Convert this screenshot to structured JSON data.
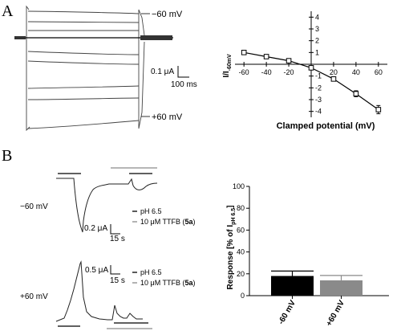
{
  "panels": {
    "A": {
      "letter": "A",
      "trace_labels": {
        "top": "−60 mV",
        "bottom": "+60 mV"
      },
      "scale_bar": {
        "current": "0.1 μA",
        "time": "100 ms"
      }
    },
    "B": {
      "letter": "B",
      "row_labels": {
        "top": "−60 mV",
        "bottom": "+60 mV"
      },
      "scale_top": {
        "current": "0.2 μA",
        "time": "15 s"
      },
      "scale_bottom": {
        "current": "0.5 μA",
        "time": "15 s"
      },
      "legend": {
        "ph": "pH 6.5",
        "ttfb_prefix": "10 μM TTFB (",
        "ttfb_bold": "5a",
        "ttfb_suffix": ")"
      }
    }
  },
  "colors": {
    "black": "#000000",
    "gray": "#8a8a8a",
    "trace": "#444444"
  },
  "chart_data": [
    {
      "type": "line",
      "panel": "A",
      "xlabel": "Clamped potential (mV)",
      "ylabel_main": "I/I",
      "ylabel_sub": "-60mV",
      "x": [
        -60,
        -40,
        -20,
        0,
        20,
        40,
        60
      ],
      "y": [
        1.0,
        0.65,
        0.3,
        -0.3,
        -1.25,
        -2.5,
        -3.85
      ],
      "err": [
        0.1,
        0.05,
        0.05,
        0.05,
        0.15,
        0.25,
        0.35
      ],
      "xticks": [
        -60,
        -40,
        -20,
        20,
        40,
        60
      ],
      "yticks": [
        -4,
        -3,
        -2,
        -1,
        1,
        2,
        3,
        4
      ],
      "xlim": [
        -68,
        68
      ],
      "ylim": [
        -4.5,
        4.5
      ],
      "marker": "open-square"
    },
    {
      "type": "bar",
      "panel": "B",
      "ylabel_main": "Response [% of I",
      "ylabel_sub": "pH 6.5",
      "ylabel_end": "]",
      "categories": [
        "-60  mV",
        "+60  mV"
      ],
      "values": [
        18,
        14
      ],
      "errors": [
        4.5,
        4.5
      ],
      "colors": [
        "#000000",
        "#8a8a8a"
      ],
      "yticks": [
        0,
        20,
        40,
        60,
        80,
        100
      ],
      "ylim": [
        0,
        100
      ]
    }
  ]
}
